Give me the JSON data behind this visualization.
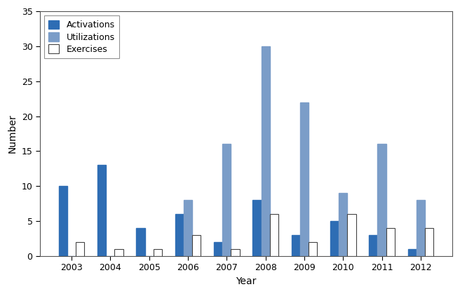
{
  "years": [
    2003,
    2004,
    2005,
    2006,
    2007,
    2008,
    2009,
    2010,
    2011,
    2012
  ],
  "activations": [
    10,
    13,
    4,
    6,
    2,
    8,
    3,
    5,
    3,
    1
  ],
  "utilizations": [
    0,
    0,
    0,
    8,
    16,
    30,
    22,
    9,
    16,
    8
  ],
  "exercises": [
    2,
    1,
    1,
    3,
    1,
    6,
    2,
    6,
    4,
    4
  ],
  "activation_color": "#2E6DB4",
  "utilization_color": "#7B9DC8",
  "exercise_color": "#FFFFFF",
  "exercise_edgecolor": "#444444",
  "xlabel": "Year",
  "ylabel": "Number",
  "ylim": [
    0,
    35
  ],
  "yticks": [
    0,
    5,
    10,
    15,
    20,
    25,
    30,
    35
  ],
  "bar_width": 0.22,
  "legend_labels": [
    "Activations",
    "Utilizations",
    "Exercises"
  ],
  "background_color": "#FFFFFF"
}
